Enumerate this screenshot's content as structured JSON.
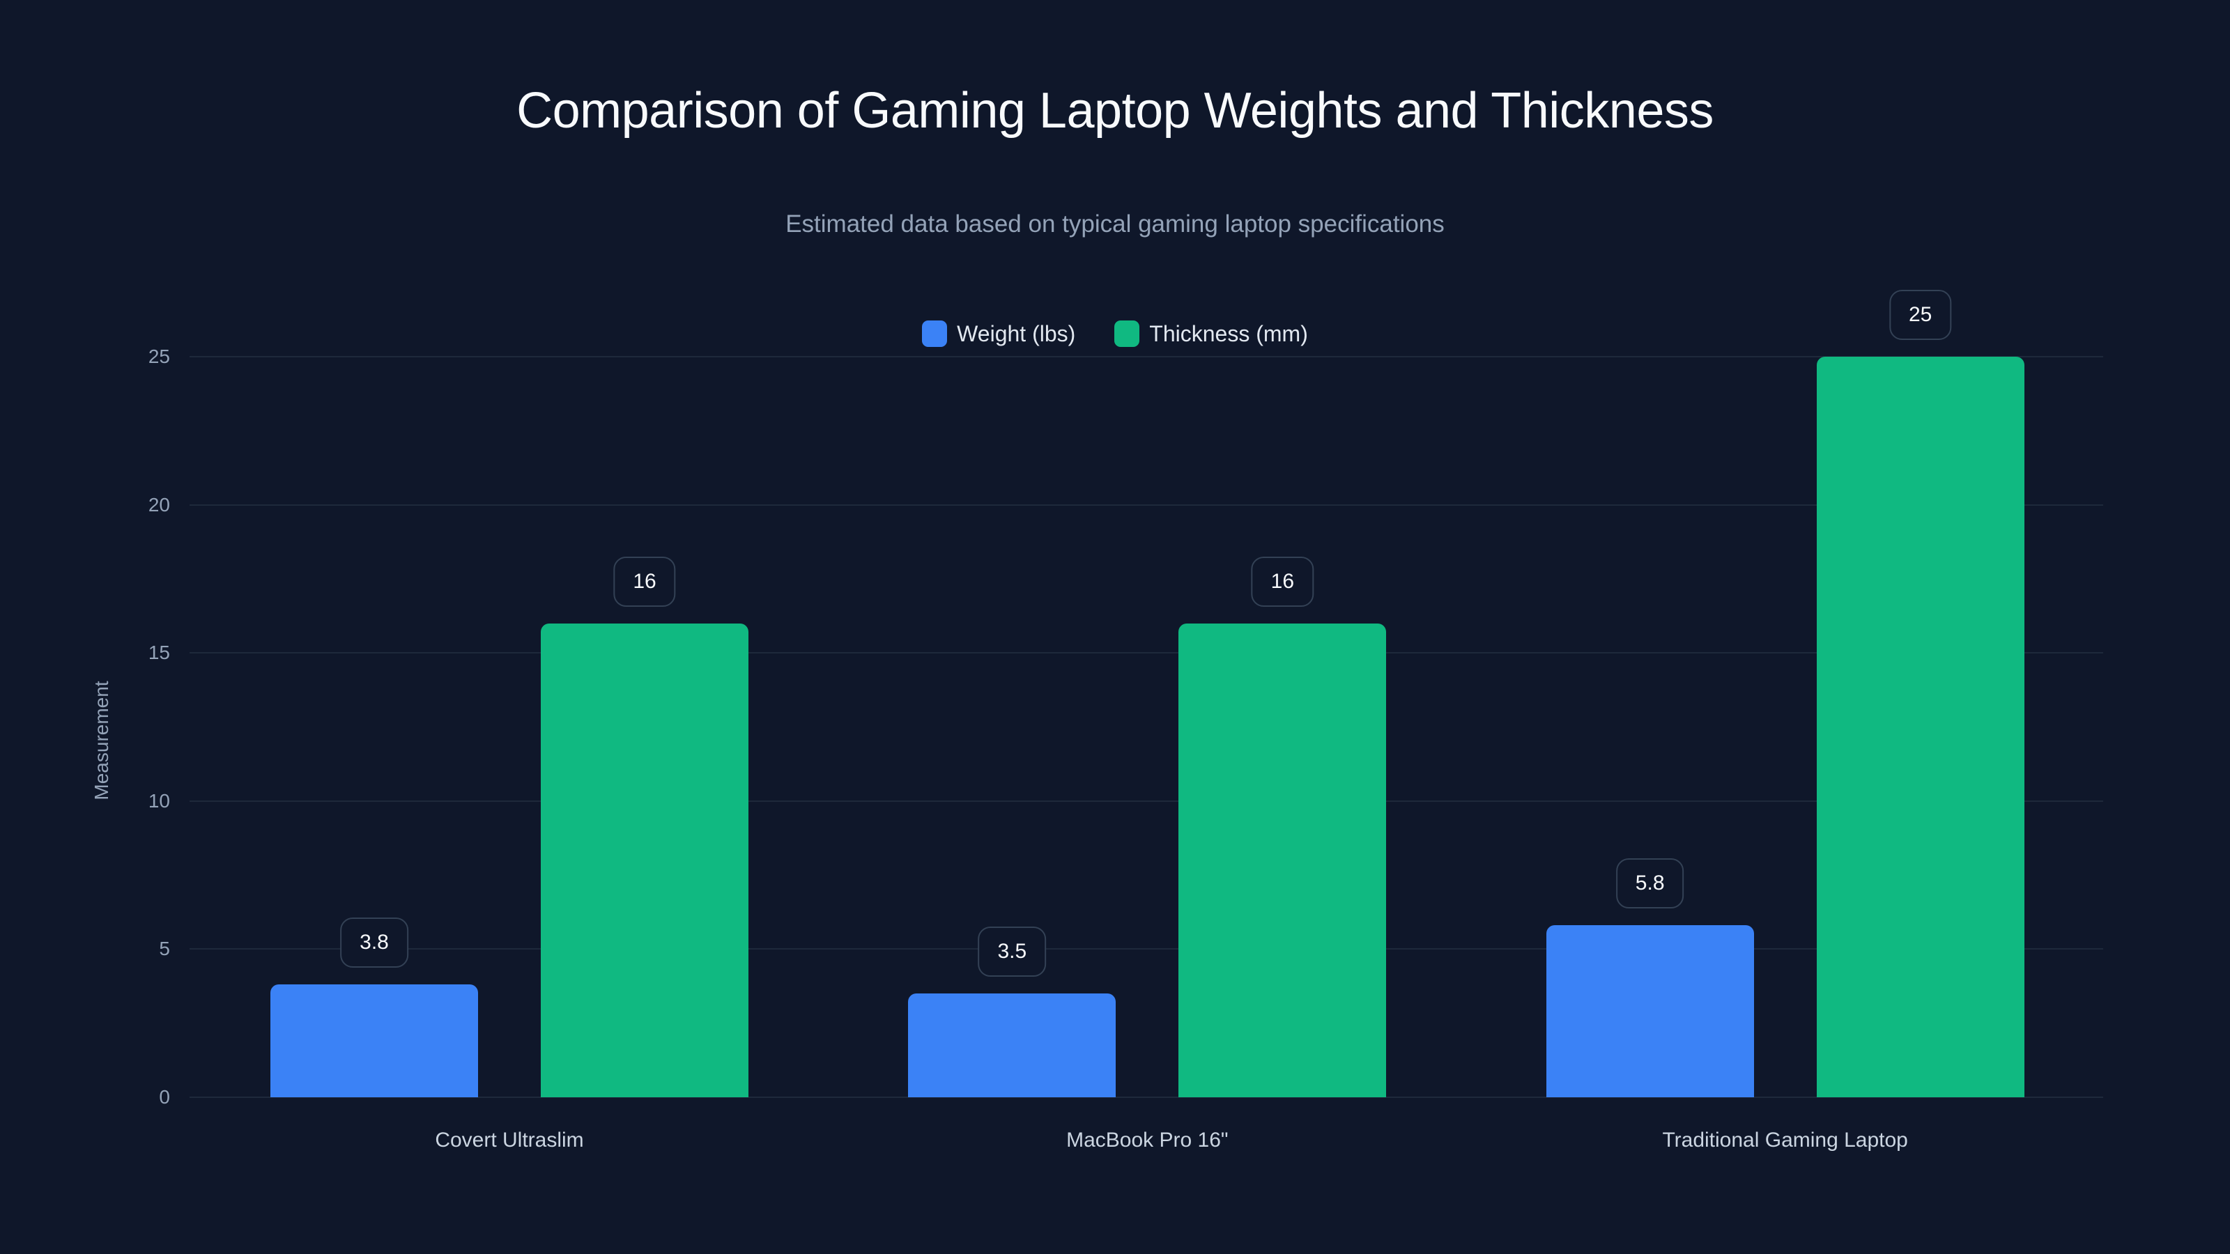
{
  "header": {
    "title": "Comparison of Gaming Laptop Weights and Thickness",
    "subtitle": "Estimated data based on typical gaming laptop specifications"
  },
  "legend": [
    {
      "label": "Weight (lbs)",
      "color": "#3b82f6"
    },
    {
      "label": "Thickness (mm)",
      "color": "#10b981"
    }
  ],
  "axes": {
    "ylabel": "Measurement",
    "yticks": [
      "0",
      "5",
      "10",
      "15",
      "20",
      "25"
    ]
  },
  "chart_data": {
    "type": "bar",
    "title": "Comparison of Gaming Laptop Weights and Thickness",
    "subtitle": "Estimated data based on typical gaming laptop specifications",
    "categories": [
      "Covert Ultraslim",
      "MacBook Pro 16\"",
      "Traditional Gaming Laptop"
    ],
    "series": [
      {
        "name": "Weight (lbs)",
        "color": "#3b82f6",
        "values": [
          3.8,
          3.5,
          5.8
        ]
      },
      {
        "name": "Thickness (mm)",
        "color": "#10b981",
        "values": [
          16,
          16,
          25
        ]
      }
    ],
    "xlabel": "",
    "ylabel": "Measurement",
    "ylim": [
      0,
      25
    ],
    "yticks": [
      0,
      5,
      10,
      15,
      20,
      25
    ],
    "grid": true,
    "legend_position": "top",
    "data_labels": true
  }
}
